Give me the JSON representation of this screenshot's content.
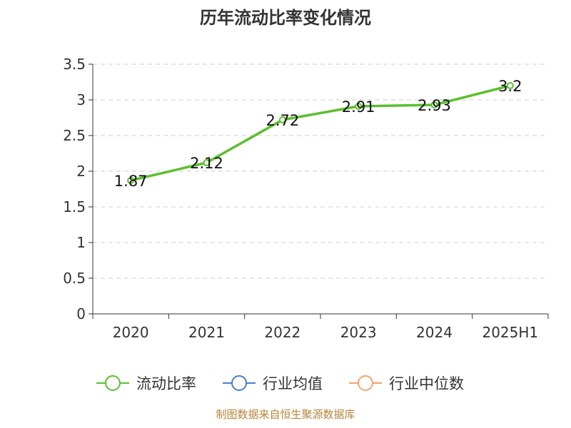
{
  "chart_data": {
    "type": "line",
    "title": "历年流动比率变化情况",
    "categories": [
      "2020",
      "2021",
      "2022",
      "2023",
      "2024",
      "2025H1"
    ],
    "series": [
      {
        "name": "流动比率",
        "values": [
          1.87,
          2.12,
          2.72,
          2.91,
          2.93,
          3.2
        ],
        "color": "#5cbf2f"
      }
    ],
    "data_labels": [
      "1.87",
      "2.12",
      "2.72",
      "2.91",
      "2.93",
      "3.2"
    ],
    "ylim": [
      0,
      3.5
    ],
    "y_ticks": [
      "0",
      "0.5",
      "1",
      "1.5",
      "2",
      "2.5",
      "3",
      "3.5"
    ],
    "grid": true,
    "legend_position": "bottom"
  },
  "legend": [
    {
      "label": "流动比率",
      "color": "#5cbf2f",
      "icon": "circle-line-icon"
    },
    {
      "label": "行业均值",
      "color": "#4b7bd6",
      "icon": "circle-line-icon"
    },
    {
      "label": "行业中位数",
      "color": "#f5a26b",
      "icon": "circle-line-icon"
    }
  ],
  "source_text": "制图数据来自恒生聚源数据库"
}
